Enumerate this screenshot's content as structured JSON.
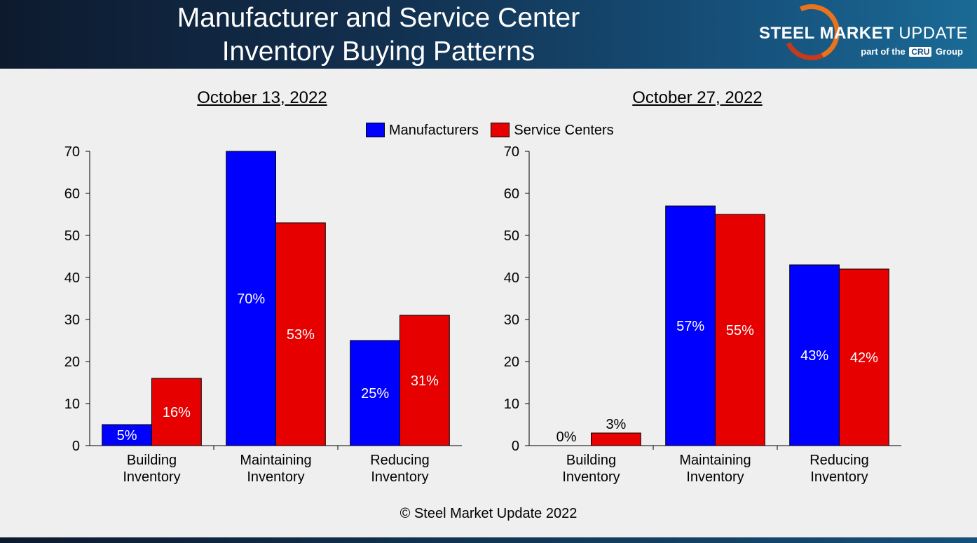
{
  "header": {
    "title_line1": "Manufacturer and Service Center",
    "title_line2": "Inventory Buying Patterns",
    "logo_word1": "STEEL MARKET",
    "logo_word2": " UPDATE",
    "logo_sub_prefix": "part of the",
    "logo_sub_cru": "CRU",
    "logo_sub_suffix": "Group"
  },
  "legend": {
    "manufacturers": "Manufacturers",
    "service_centers": "Service Centers"
  },
  "colors": {
    "manufacturers": "#0000ff",
    "service_centers": "#e60000"
  },
  "footer": {
    "copyright": "© Steel Market Update 2022"
  },
  "chart_data": [
    {
      "type": "bar",
      "title": "October 13, 2022",
      "categories": [
        "Building\nInventory",
        "Maintaining\nInventory",
        "Reducing\nInventory"
      ],
      "series": [
        {
          "name": "Manufacturers",
          "values": [
            5,
            70,
            25
          ],
          "labels": [
            "5%",
            "70%",
            "25%"
          ]
        },
        {
          "name": "Service Centers",
          "values": [
            16,
            53,
            31
          ],
          "labels": [
            "16%",
            "53%",
            "31%"
          ]
        }
      ],
      "ylim": [
        0,
        70
      ],
      "yticks": [
        0,
        10,
        20,
        30,
        40,
        50,
        60,
        70
      ],
      "xlabel": "",
      "ylabel": ""
    },
    {
      "type": "bar",
      "title": "October 27, 2022",
      "categories": [
        "Building\nInventory",
        "Maintaining\nInventory",
        "Reducing\nInventory"
      ],
      "series": [
        {
          "name": "Manufacturers",
          "values": [
            0,
            57,
            43
          ],
          "labels": [
            "0%",
            "57%",
            "43%"
          ]
        },
        {
          "name": "Service Centers",
          "values": [
            3,
            55,
            42
          ],
          "labels": [
            "3%",
            "55%",
            "42%"
          ]
        }
      ],
      "ylim": [
        0,
        70
      ],
      "yticks": [
        0,
        10,
        20,
        30,
        40,
        50,
        60,
        70
      ],
      "xlabel": "",
      "ylabel": ""
    }
  ]
}
